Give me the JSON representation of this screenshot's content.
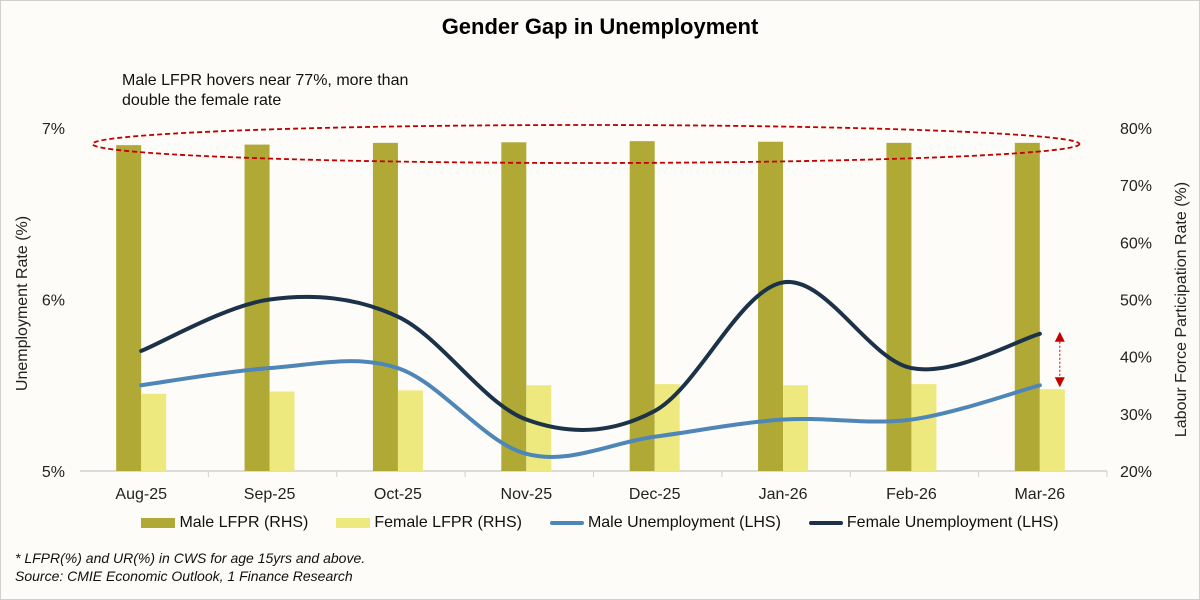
{
  "chart_data": {
    "type": "bar+line",
    "title": "Gender Gap in Unemployment",
    "annotation": "Male LFPR hovers near 77%, more than double the female rate",
    "categories": [
      "Aug-25",
      "Sep-25",
      "Oct-25",
      "Nov-25",
      "Dec-25",
      "Jan-26",
      "Feb-26",
      "Mar-26"
    ],
    "ylabel_left": "Unemployment  Rate (%)",
    "ylabel_right": "Labour Force Participation Rate (%)",
    "ylim_left": [
      5,
      7
    ],
    "yticks_left": [
      "5%",
      "6%",
      "7%"
    ],
    "ylim_right": [
      20,
      80
    ],
    "yticks_right": [
      "20%",
      "30%",
      "40%",
      "50%",
      "60%",
      "70%",
      "80%"
    ],
    "grid": false,
    "legend_position": "bottom",
    "series": [
      {
        "name": "Male LFPR (RHS)",
        "type": "bar",
        "axis": "right",
        "color": "#b0a936",
        "values": [
          77.0,
          77.1,
          77.4,
          77.5,
          77.7,
          77.6,
          77.4,
          77.4
        ]
      },
      {
        "name": "Female LFPR (RHS)",
        "type": "bar",
        "axis": "right",
        "color": "#ede97f",
        "values": [
          33.5,
          33.9,
          34.1,
          35.0,
          35.2,
          35.0,
          35.2,
          34.3
        ]
      },
      {
        "name": "Male Unemployment (LHS)",
        "type": "line",
        "axis": "left",
        "color": "#4f86b8",
        "values": [
          5.5,
          5.6,
          5.6,
          5.1,
          5.2,
          5.3,
          5.3,
          5.5
        ]
      },
      {
        "name": "Female Unemployment (LHS)",
        "type": "line",
        "axis": "left",
        "color": "#1c3249",
        "values": [
          5.7,
          6.0,
          5.9,
          5.3,
          5.35,
          6.1,
          5.6,
          5.8
        ]
      }
    ],
    "highlight_color": "#c00000"
  },
  "footnote": "* LFPR(%) and UR(%) in CWS for age 15yrs and above.",
  "source": "Source: CMIE Economic Outlook, 1 Finance Research"
}
